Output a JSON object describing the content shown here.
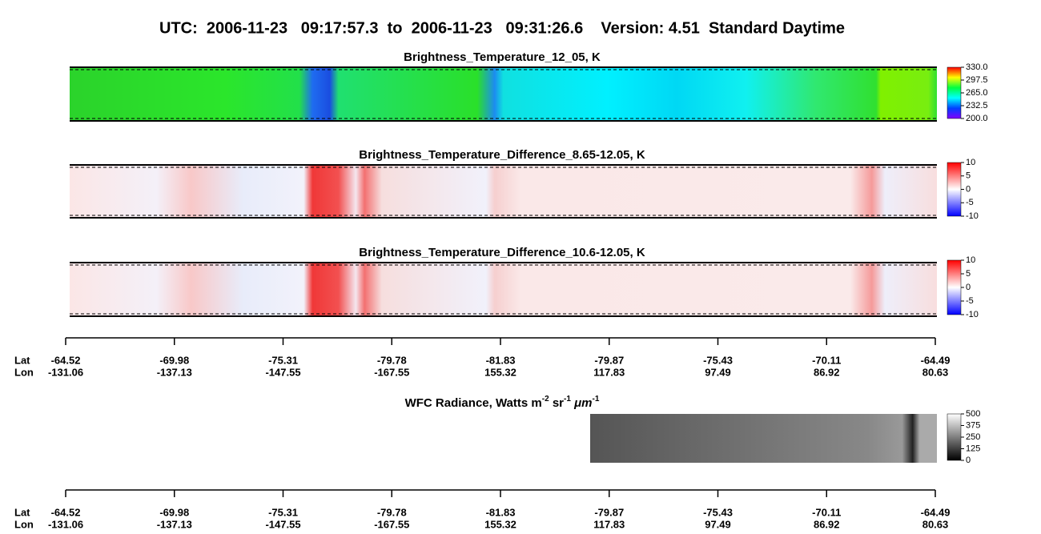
{
  "title": "UTC:  2006-11-23   09:17:57.3  to  2006-11-23   09:31:26.6    Version: 4.51  Standard Daytime",
  "chart_data": [
    {
      "type": "heatmap",
      "title": "Brightness_Temperature_12_05, K",
      "clim": [
        200,
        330
      ],
      "cticks": [
        {
          "value": 330,
          "label": "330.0"
        },
        {
          "value": 297.5,
          "label": "297.5"
        },
        {
          "value": 265,
          "label": "265.0"
        },
        {
          "value": 232.5,
          "label": "232.5"
        },
        {
          "value": 200,
          "label": "200.0"
        }
      ]
    },
    {
      "type": "heatmap",
      "title": "Brightness_Temperature_Difference_8.65-12.05, K",
      "clim": [
        -10,
        10
      ],
      "cticks": [
        10,
        5,
        0,
        -5,
        -10
      ]
    },
    {
      "type": "heatmap",
      "title": "Brightness_Temperature_Difference_10.6-12.05, K",
      "clim": [
        -10,
        10
      ],
      "cticks": [
        10,
        5,
        0,
        -5,
        -10
      ]
    },
    {
      "type": "heatmap",
      "title_parts": [
        "WFC Radiance, Watts m",
        "-2",
        " sr",
        "-1",
        " μm",
        "-1"
      ],
      "clim": [
        0,
        500
      ],
      "cticks": [
        500,
        375,
        250,
        125,
        0
      ]
    }
  ],
  "axis": {
    "lat_label": "Lat",
    "lon_label": "Lon",
    "lat": [
      -64.52,
      -69.98,
      -75.31,
      -79.78,
      -81.83,
      -79.87,
      -75.43,
      -70.11,
      -64.49
    ],
    "lon": [
      -131.06,
      -137.13,
      -147.55,
      -167.55,
      155.32,
      117.83,
      97.49,
      86.92,
      80.63
    ]
  }
}
